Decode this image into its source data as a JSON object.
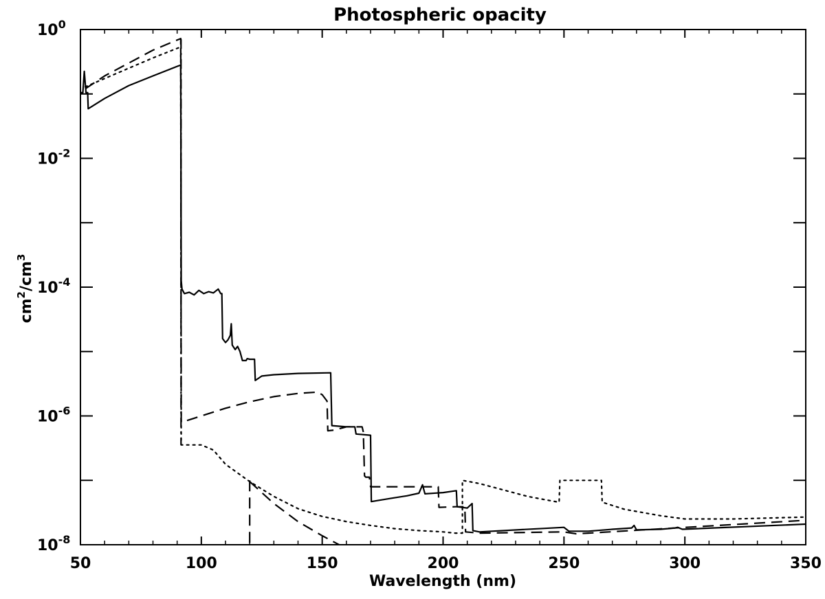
{
  "chart_data": {
    "type": "line",
    "title": "Photospheric opacity",
    "xlabel": "Wavelength (nm)",
    "ylabel": "cm",
    "ylabel_sup1": "2",
    "ylabel_mid": "/cm",
    "ylabel_sup2": "3",
    "xlim": [
      50,
      350
    ],
    "ylim_log10": [
      -8,
      0
    ],
    "yscale": "log",
    "grid": false,
    "x_ticks": [
      "50",
      "100",
      "150",
      "200",
      "250",
      "300",
      "350"
    ],
    "y_ticks": [
      {
        "base": "10",
        "exp": "-8"
      },
      {
        "base": "10",
        "exp": "-6"
      },
      {
        "base": "10",
        "exp": "-4"
      },
      {
        "base": "10",
        "exp": "-2"
      },
      {
        "base": "10",
        "exp": "0"
      }
    ],
    "series": [
      {
        "style": "solid",
        "points": [
          [
            50,
            -0.98
          ],
          [
            51,
            -0.98
          ],
          [
            51.6,
            -0.65
          ],
          [
            52.3,
            -0.98
          ],
          [
            53,
            -0.98
          ],
          [
            53.2,
            -1.23
          ],
          [
            60,
            -1.07
          ],
          [
            70,
            -0.87
          ],
          [
            80,
            -0.72
          ],
          [
            91.5,
            -0.55
          ],
          [
            91.7,
            -3.9
          ],
          [
            92,
            -4.03
          ],
          [
            93,
            -4.1
          ],
          [
            95,
            -4.08
          ],
          [
            97,
            -4.12
          ],
          [
            99,
            -4.05
          ],
          [
            101,
            -4.1
          ],
          [
            103,
            -4.07
          ],
          [
            105,
            -4.09
          ],
          [
            107,
            -4.03
          ],
          [
            108,
            -4.1
          ],
          [
            108.5,
            -4.1
          ],
          [
            108.8,
            -4.8
          ],
          [
            110,
            -4.86
          ],
          [
            111,
            -4.82
          ],
          [
            112,
            -4.75
          ],
          [
            112.4,
            -4.57
          ],
          [
            112.8,
            -4.9
          ],
          [
            114,
            -4.97
          ],
          [
            115,
            -4.92
          ],
          [
            116,
            -5.0
          ],
          [
            117,
            -5.14
          ],
          [
            118.5,
            -5.14
          ],
          [
            119,
            -5.11
          ],
          [
            120,
            -5.12
          ],
          [
            122,
            -5.12
          ],
          [
            122.3,
            -5.45
          ],
          [
            125,
            -5.38
          ],
          [
            130,
            -5.36
          ],
          [
            140,
            -5.34
          ],
          [
            153.5,
            -5.33
          ],
          [
            154,
            -6.15
          ],
          [
            160,
            -6.17
          ],
          [
            163.5,
            -6.17
          ],
          [
            164,
            -6.28
          ],
          [
            170,
            -6.3
          ],
          [
            170.3,
            -7.33
          ],
          [
            175,
            -7.3
          ],
          [
            180,
            -7.27
          ],
          [
            185,
            -7.24
          ],
          [
            190,
            -7.2
          ],
          [
            191.5,
            -7.07
          ],
          [
            192.5,
            -7.21
          ],
          [
            200,
            -7.19
          ],
          [
            205.5,
            -7.16
          ],
          [
            205.8,
            -7.41
          ],
          [
            210,
            -7.43
          ],
          [
            212,
            -7.36
          ],
          [
            212.3,
            -7.78
          ],
          [
            215,
            -7.8
          ],
          [
            250,
            -7.73
          ],
          [
            252,
            -7.79
          ],
          [
            260,
            -7.79
          ],
          [
            270,
            -7.76
          ],
          [
            278,
            -7.74
          ],
          [
            279,
            -7.7
          ],
          [
            280,
            -7.77
          ],
          [
            290,
            -7.76
          ],
          [
            296,
            -7.74
          ],
          [
            297,
            -7.73
          ],
          [
            299,
            -7.76
          ],
          [
            350,
            -7.68
          ]
        ]
      },
      {
        "style": "dashed",
        "points": [
          [
            52,
            -0.92
          ],
          [
            60,
            -0.72
          ],
          [
            70,
            -0.52
          ],
          [
            80,
            -0.32
          ],
          [
            91.5,
            -0.14
          ],
          [
            91.7,
            -6.1
          ],
          [
            100,
            -6.0
          ],
          [
            110,
            -5.88
          ],
          [
            120,
            -5.78
          ],
          [
            130,
            -5.7
          ],
          [
            140,
            -5.65
          ],
          [
            148,
            -5.63
          ],
          [
            150,
            -5.67
          ],
          [
            152,
            -5.77
          ],
          [
            152.3,
            -6.23
          ],
          [
            155,
            -6.22
          ],
          [
            160,
            -6.17
          ],
          [
            166.5,
            -6.17
          ],
          [
            167,
            -6.25
          ],
          [
            167.5,
            -6.93
          ],
          [
            168,
            -6.95
          ],
          [
            169.5,
            -6.95
          ],
          [
            170,
            -7.1
          ],
          [
            190,
            -7.1
          ],
          [
            198,
            -7.1
          ],
          [
            198.3,
            -7.42
          ],
          [
            205,
            -7.41
          ],
          [
            209,
            -7.41
          ],
          [
            209.3,
            -7.8
          ],
          [
            215,
            -7.82
          ],
          [
            250,
            -7.8
          ],
          [
            255,
            -7.83
          ],
          [
            260,
            -7.82
          ],
          [
            350,
            -7.62
          ]
        ]
      },
      {
        "style": "dashed",
        "points": [
          [
            120,
            -7.0
          ],
          [
            120,
            -8.0
          ]
        ]
      },
      {
        "style": "dashed",
        "points": [
          [
            120,
            -7.02
          ],
          [
            130,
            -7.36
          ],
          [
            140,
            -7.64
          ],
          [
            150,
            -7.86
          ],
          [
            160,
            -8.06
          ],
          [
            170,
            -8.24
          ],
          [
            175,
            -8.32
          ]
        ]
      },
      {
        "style": "dotted",
        "points": [
          [
            52,
            -0.89
          ],
          [
            60,
            -0.76
          ],
          [
            70,
            -0.6
          ],
          [
            80,
            -0.44
          ],
          [
            91.5,
            -0.27
          ],
          [
            91.7,
            -6.45
          ],
          [
            96,
            -6.45
          ],
          [
            100,
            -6.45
          ],
          [
            105,
            -6.53
          ],
          [
            110,
            -6.75
          ],
          [
            120,
            -7.02
          ],
          [
            130,
            -7.25
          ],
          [
            140,
            -7.44
          ],
          [
            150,
            -7.56
          ],
          [
            160,
            -7.64
          ],
          [
            170,
            -7.7
          ],
          [
            180,
            -7.75
          ],
          [
            190,
            -7.78
          ],
          [
            200,
            -7.8
          ],
          [
            205,
            -7.82
          ],
          [
            208,
            -7.82
          ],
          [
            208,
            -7.0
          ],
          [
            215,
            -7.05
          ],
          [
            225,
            -7.15
          ],
          [
            235,
            -7.25
          ],
          [
            245,
            -7.32
          ],
          [
            248,
            -7.34
          ],
          [
            248.3,
            -7.0
          ],
          [
            260,
            -7.0
          ],
          [
            265.5,
            -7.0
          ],
          [
            265.8,
            -7.34
          ],
          [
            275,
            -7.45
          ],
          [
            290,
            -7.55
          ],
          [
            300,
            -7.6
          ],
          [
            320,
            -7.6
          ],
          [
            350,
            -7.57
          ]
        ]
      },
      {
        "style": "dashdot",
        "points": [
          [
            91.6,
            -0.15
          ],
          [
            91.6,
            -6.45
          ]
        ]
      }
    ]
  }
}
